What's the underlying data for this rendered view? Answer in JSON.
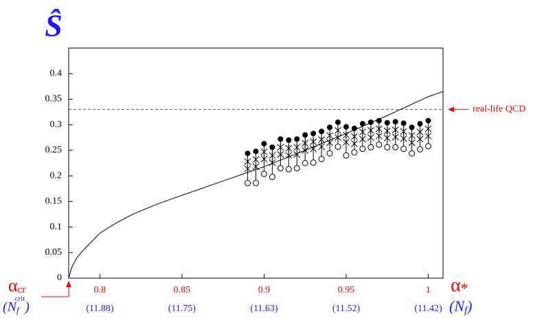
{
  "chart_data": {
    "type": "scatter",
    "y_label": "Ŝ",
    "x_label": {
      "symbol": "α",
      "subscript": "*"
    },
    "x_origin_label": {
      "symbol": "α",
      "subscript": "cr"
    },
    "x_origin_second_label": {
      "open": "(N",
      "subscript": "f",
      "superscript": "crit",
      "close": ")"
    },
    "x_second_label": {
      "open": "(N",
      "subscript": "f",
      "close": ")"
    },
    "xlim": [
      0.781,
      1.009
    ],
    "ylim": [
      0,
      0.45
    ],
    "xticks": [
      0.8,
      0.85,
      0.9,
      0.95,
      1
    ],
    "x_second_ticks": [
      "(11.88)",
      "(11.75)",
      "(11.63)",
      "(11.52)",
      "(11.42)"
    ],
    "yticks": [
      0,
      0.05,
      0.1,
      0.15,
      0.2,
      0.25,
      0.3,
      0.35,
      0.4
    ],
    "reference_line": {
      "value": 0.33,
      "label": "real-life QCD",
      "color": "#ff0000"
    },
    "curve": {
      "x": [
        0.781,
        0.783,
        0.786,
        0.79,
        0.8,
        0.81,
        0.82,
        0.835,
        0.85,
        0.875,
        0.9,
        0.925,
        0.95,
        0.975,
        1.0,
        1.009
      ],
      "values": [
        0,
        0.022,
        0.04,
        0.055,
        0.088,
        0.108,
        0.125,
        0.145,
        0.162,
        0.19,
        0.218,
        0.25,
        0.283,
        0.318,
        0.355,
        0.365
      ]
    },
    "x": [
      0.89,
      0.895,
      0.9,
      0.905,
      0.91,
      0.915,
      0.92,
      0.925,
      0.93,
      0.935,
      0.94,
      0.945,
      0.95,
      0.955,
      0.96,
      0.965,
      0.97,
      0.975,
      0.98,
      0.985,
      0.99,
      0.995,
      1.0
    ],
    "series": [
      {
        "marker": "filled",
        "values": [
          0.244,
          0.248,
          0.263,
          0.256,
          0.272,
          0.27,
          0.272,
          0.28,
          0.283,
          0.287,
          0.295,
          0.305,
          0.296,
          0.293,
          0.302,
          0.305,
          0.308,
          0.304,
          0.306,
          0.303,
          0.295,
          0.302,
          0.308
        ]
      },
      {
        "marker": "star",
        "values": [
          0.228,
          0.232,
          0.247,
          0.24,
          0.256,
          0.254,
          0.256,
          0.264,
          0.267,
          0.271,
          0.279,
          0.289,
          0.28,
          0.277,
          0.286,
          0.289,
          0.292,
          0.288,
          0.29,
          0.287,
          0.279,
          0.286,
          0.292
        ]
      },
      {
        "marker": "cross",
        "values": [
          0.214,
          0.218,
          0.233,
          0.226,
          0.242,
          0.24,
          0.242,
          0.25,
          0.253,
          0.257,
          0.265,
          0.275,
          0.266,
          0.263,
          0.272,
          0.275,
          0.278,
          0.274,
          0.276,
          0.273,
          0.265,
          0.272,
          0.278
        ]
      },
      {
        "marker": "open",
        "values": [
          0.186,
          0.186,
          0.204,
          0.198,
          0.215,
          0.213,
          0.215,
          0.225,
          0.226,
          0.233,
          0.244,
          0.257,
          0.24,
          0.246,
          0.253,
          0.256,
          0.261,
          0.256,
          0.256,
          0.253,
          0.244,
          0.252,
          0.258
        ]
      }
    ]
  }
}
